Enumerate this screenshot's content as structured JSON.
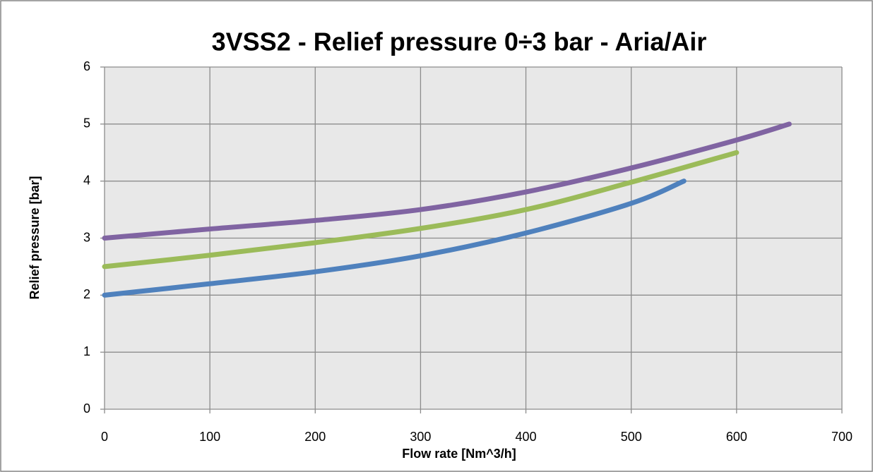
{
  "chart_data": {
    "type": "line",
    "title": "3VSS2 - Relief pressure 0÷3 bar - Aria/Air",
    "xlabel": "Flow rate [Nm^3/h]",
    "ylabel": "Relief pressure [bar]",
    "series": [
      {
        "color": "#4f81bd",
        "x": [
          0,
          100,
          200,
          300,
          400,
          500,
          550
        ],
        "values": [
          2.0,
          2.2,
          2.41,
          2.69,
          3.09,
          3.61,
          4.0
        ]
      },
      {
        "color": "#9bbb59",
        "x": [
          0,
          100,
          200,
          300,
          400,
          500,
          600
        ],
        "values": [
          2.5,
          2.7,
          2.92,
          3.17,
          3.5,
          3.98,
          4.5
        ]
      },
      {
        "color": "#8064a2",
        "x": [
          0,
          100,
          200,
          300,
          400,
          500,
          600,
          650
        ],
        "values": [
          3.0,
          3.16,
          3.31,
          3.5,
          3.81,
          4.23,
          4.72,
          5.0
        ]
      }
    ],
    "xlim": [
      0,
      700
    ],
    "xticks": [
      0,
      100,
      200,
      300,
      400,
      500,
      600,
      700
    ],
    "ylim": [
      0,
      6
    ],
    "yticks": [
      0,
      1,
      2,
      3,
      4,
      5,
      6
    ],
    "grid": true
  }
}
